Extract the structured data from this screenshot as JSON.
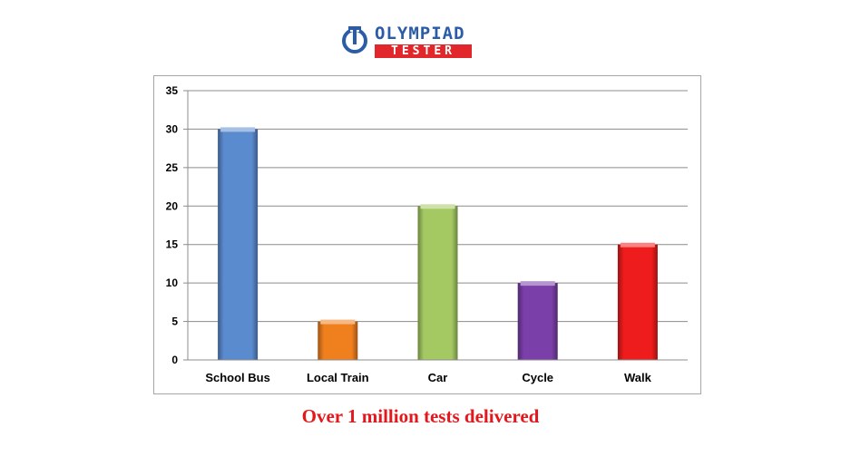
{
  "logo": {
    "line1": "OLYMPIAD",
    "line2": "TESTER",
    "colors": {
      "blue": "#2b5ca8",
      "red": "#e1272b"
    }
  },
  "chart_data": {
    "type": "bar",
    "title": "",
    "xlabel": "",
    "ylabel": "",
    "categories": [
      "School Bus",
      "Local Train",
      "Car",
      "Cycle",
      "Walk"
    ],
    "values": [
      30,
      5,
      20,
      10,
      15
    ],
    "colors": [
      "#5b8bcf",
      "#f07f1e",
      "#a4c962",
      "#7a3fa8",
      "#ee1c1c"
    ],
    "ylim": [
      0,
      35
    ],
    "yticks": [
      0,
      5,
      10,
      15,
      20,
      25,
      30,
      35
    ],
    "grid": true,
    "legend": "none"
  },
  "footer": {
    "text": "Over 1 million tests delivered",
    "color": "#e3171c"
  }
}
